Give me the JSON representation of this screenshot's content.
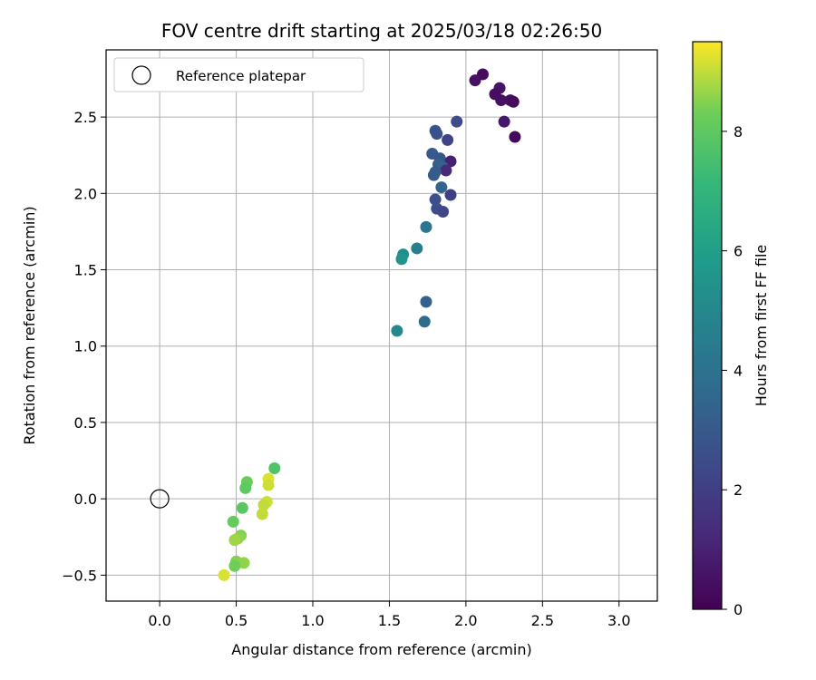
{
  "chart_data": {
    "type": "scatter",
    "title": "FOV centre drift starting at 2025/03/18 02:26:50",
    "xlabel": "Angular distance from reference (arcmin)",
    "ylabel": "Rotation from reference (arcmin)",
    "xlim": [
      -0.35,
      3.25
    ],
    "ylim": [
      -0.67,
      2.94
    ],
    "xticks": [
      0.0,
      0.5,
      1.0,
      1.5,
      2.0,
      2.5,
      3.0
    ],
    "xtick_labels": [
      "0.0",
      "0.5",
      "1.0",
      "1.5",
      "2.0",
      "2.5",
      "3.0"
    ],
    "yticks": [
      -0.5,
      0.0,
      0.5,
      1.0,
      1.5,
      2.0,
      2.5
    ],
    "ytick_labels": [
      "−0.5",
      "0.0",
      "0.5",
      "1.0",
      "1.5",
      "2.0",
      "2.5"
    ],
    "grid": true,
    "legend": {
      "placement": "top-left",
      "entries": [
        "Reference platepar"
      ]
    },
    "reference_point": {
      "x": 0.0,
      "y": 0.0
    },
    "colorbar": {
      "label": "Hours from first FF file",
      "range": [
        0,
        9.5
      ],
      "ticks": [
        0,
        2,
        4,
        6,
        8
      ],
      "tick_labels": [
        "0",
        "2",
        "4",
        "6",
        "8"
      ],
      "colormap": "viridis"
    },
    "points": [
      {
        "x": 2.11,
        "y": 2.78,
        "h": 0.3
      },
      {
        "x": 2.06,
        "y": 2.74,
        "h": 0.5
      },
      {
        "x": 2.22,
        "y": 2.69,
        "h": 0.6
      },
      {
        "x": 2.19,
        "y": 2.65,
        "h": 0.4
      },
      {
        "x": 2.23,
        "y": 2.61,
        "h": 0.5
      },
      {
        "x": 2.29,
        "y": 2.61,
        "h": 0.4
      },
      {
        "x": 2.31,
        "y": 2.6,
        "h": 0.3
      },
      {
        "x": 2.25,
        "y": 2.47,
        "h": 0.7
      },
      {
        "x": 2.32,
        "y": 2.37,
        "h": 0.2
      },
      {
        "x": 1.94,
        "y": 2.47,
        "h": 2.4
      },
      {
        "x": 1.8,
        "y": 2.41,
        "h": 2.8
      },
      {
        "x": 1.81,
        "y": 2.39,
        "h": 2.7
      },
      {
        "x": 1.88,
        "y": 2.35,
        "h": 2.2
      },
      {
        "x": 1.78,
        "y": 2.26,
        "h": 3.0
      },
      {
        "x": 1.83,
        "y": 2.23,
        "h": 2.9
      },
      {
        "x": 1.9,
        "y": 2.21,
        "h": 1.0
      },
      {
        "x": 1.82,
        "y": 2.19,
        "h": 3.2
      },
      {
        "x": 1.85,
        "y": 2.17,
        "h": 3.3
      },
      {
        "x": 1.87,
        "y": 2.15,
        "h": 1.3
      },
      {
        "x": 1.8,
        "y": 2.14,
        "h": 3.1
      },
      {
        "x": 1.79,
        "y": 2.12,
        "h": 3.1
      },
      {
        "x": 1.84,
        "y": 2.04,
        "h": 3.4
      },
      {
        "x": 1.9,
        "y": 1.99,
        "h": 2.0
      },
      {
        "x": 1.8,
        "y": 1.96,
        "h": 2.6
      },
      {
        "x": 1.81,
        "y": 1.9,
        "h": 2.5
      },
      {
        "x": 1.85,
        "y": 1.88,
        "h": 2.3
      },
      {
        "x": 1.74,
        "y": 1.78,
        "h": 4.2
      },
      {
        "x": 1.68,
        "y": 1.64,
        "h": 4.6
      },
      {
        "x": 1.59,
        "y": 1.6,
        "h": 5.2
      },
      {
        "x": 1.58,
        "y": 1.57,
        "h": 5.5
      },
      {
        "x": 1.74,
        "y": 1.29,
        "h": 3.2
      },
      {
        "x": 1.73,
        "y": 1.16,
        "h": 3.7
      },
      {
        "x": 1.55,
        "y": 1.1,
        "h": 5.0
      },
      {
        "x": 0.75,
        "y": 0.2,
        "h": 7.7
      },
      {
        "x": 0.71,
        "y": 0.13,
        "h": 9.2
      },
      {
        "x": 0.57,
        "y": 0.11,
        "h": 8.2
      },
      {
        "x": 0.71,
        "y": 0.09,
        "h": 9.1
      },
      {
        "x": 0.56,
        "y": 0.07,
        "h": 8.0
      },
      {
        "x": 0.7,
        "y": -0.02,
        "h": 9.1
      },
      {
        "x": 0.68,
        "y": -0.04,
        "h": 9.0
      },
      {
        "x": 0.54,
        "y": -0.06,
        "h": 7.9
      },
      {
        "x": 0.67,
        "y": -0.1,
        "h": 9.0
      },
      {
        "x": 0.48,
        "y": -0.15,
        "h": 8.1
      },
      {
        "x": 0.53,
        "y": -0.24,
        "h": 8.5
      },
      {
        "x": 0.51,
        "y": -0.26,
        "h": 8.6
      },
      {
        "x": 0.49,
        "y": -0.27,
        "h": 8.7
      },
      {
        "x": 0.5,
        "y": -0.41,
        "h": 8.5
      },
      {
        "x": 0.55,
        "y": -0.42,
        "h": 8.6
      },
      {
        "x": 0.49,
        "y": -0.44,
        "h": 8.3
      },
      {
        "x": 0.42,
        "y": -0.5,
        "h": 9.2
      }
    ]
  }
}
